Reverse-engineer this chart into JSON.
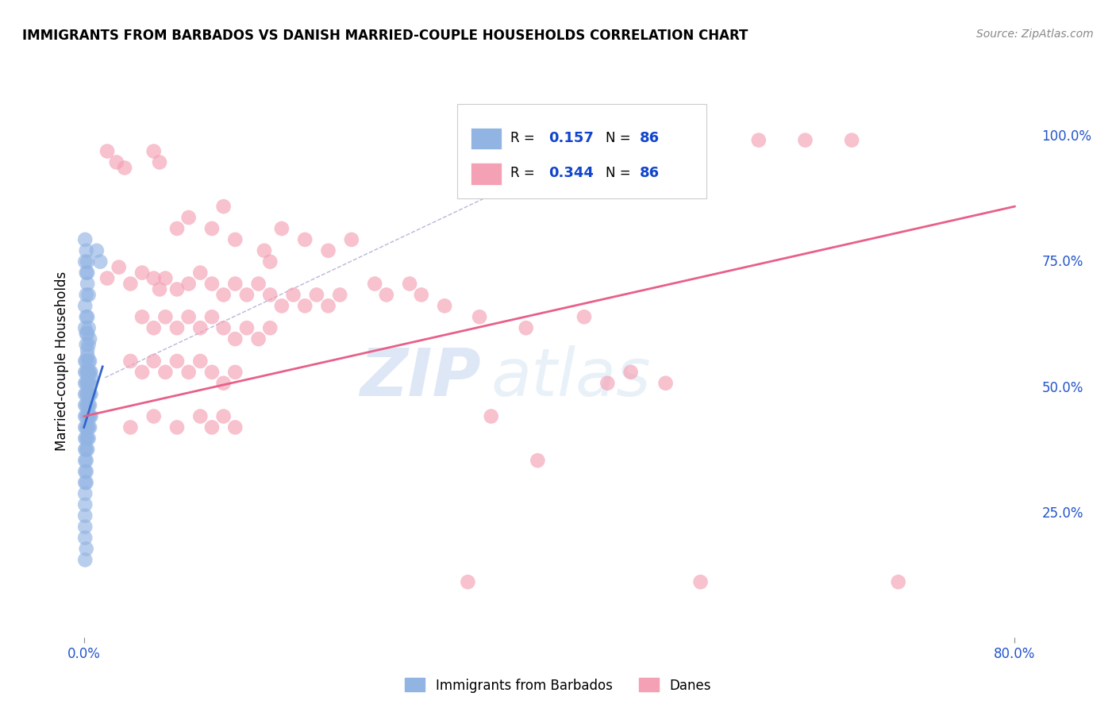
{
  "title": "IMMIGRANTS FROM BARBADOS VS DANISH MARRIED-COUPLE HOUSEHOLDS CORRELATION CHART",
  "source": "Source: ZipAtlas.com",
  "ylabel": "Married-couple Households",
  "right_yticks": [
    0.0,
    0.25,
    0.5,
    0.75,
    1.0
  ],
  "right_yticklabels": [
    "",
    "25.0%",
    "50.0%",
    "75.0%",
    "100.0%"
  ],
  "xlim": [
    -0.005,
    0.82
  ],
  "ylim": [
    0.1,
    1.1
  ],
  "R_blue": 0.157,
  "R_pink": 0.344,
  "N": 86,
  "blue_color": "#92b4e3",
  "pink_color": "#f4a0b5",
  "blue_line_color": "#3366cc",
  "pink_line_color": "#e8608a",
  "legend_blue_label": "Immigrants from Barbados",
  "legend_pink_label": "Danes",
  "watermark_zip": "ZIP",
  "watermark_atlas": "atlas",
  "blue_scatter": [
    [
      0.001,
      0.82
    ],
    [
      0.002,
      0.8
    ],
    [
      0.001,
      0.78
    ],
    [
      0.002,
      0.76
    ],
    [
      0.003,
      0.78
    ],
    [
      0.003,
      0.76
    ],
    [
      0.002,
      0.72
    ],
    [
      0.003,
      0.74
    ],
    [
      0.004,
      0.72
    ],
    [
      0.001,
      0.7
    ],
    [
      0.002,
      0.68
    ],
    [
      0.003,
      0.68
    ],
    [
      0.001,
      0.66
    ],
    [
      0.002,
      0.65
    ],
    [
      0.003,
      0.65
    ],
    [
      0.004,
      0.66
    ],
    [
      0.002,
      0.63
    ],
    [
      0.003,
      0.62
    ],
    [
      0.004,
      0.63
    ],
    [
      0.005,
      0.64
    ],
    [
      0.001,
      0.6
    ],
    [
      0.002,
      0.6
    ],
    [
      0.003,
      0.61
    ],
    [
      0.004,
      0.6
    ],
    [
      0.005,
      0.6
    ],
    [
      0.001,
      0.58
    ],
    [
      0.002,
      0.58
    ],
    [
      0.003,
      0.58
    ],
    [
      0.004,
      0.58
    ],
    [
      0.005,
      0.58
    ],
    [
      0.006,
      0.58
    ],
    [
      0.001,
      0.56
    ],
    [
      0.002,
      0.56
    ],
    [
      0.003,
      0.56
    ],
    [
      0.004,
      0.56
    ],
    [
      0.005,
      0.56
    ],
    [
      0.006,
      0.57
    ],
    [
      0.001,
      0.54
    ],
    [
      0.002,
      0.54
    ],
    [
      0.003,
      0.54
    ],
    [
      0.004,
      0.54
    ],
    [
      0.005,
      0.54
    ],
    [
      0.006,
      0.54
    ],
    [
      0.001,
      0.52
    ],
    [
      0.002,
      0.52
    ],
    [
      0.003,
      0.52
    ],
    [
      0.004,
      0.52
    ],
    [
      0.005,
      0.52
    ],
    [
      0.001,
      0.5
    ],
    [
      0.002,
      0.5
    ],
    [
      0.003,
      0.5
    ],
    [
      0.004,
      0.5
    ],
    [
      0.005,
      0.5
    ],
    [
      0.006,
      0.5
    ],
    [
      0.001,
      0.48
    ],
    [
      0.002,
      0.48
    ],
    [
      0.003,
      0.48
    ],
    [
      0.004,
      0.48
    ],
    [
      0.005,
      0.48
    ],
    [
      0.001,
      0.46
    ],
    [
      0.002,
      0.46
    ],
    [
      0.003,
      0.46
    ],
    [
      0.004,
      0.46
    ],
    [
      0.001,
      0.44
    ],
    [
      0.002,
      0.44
    ],
    [
      0.003,
      0.44
    ],
    [
      0.001,
      0.42
    ],
    [
      0.002,
      0.42
    ],
    [
      0.001,
      0.4
    ],
    [
      0.002,
      0.4
    ],
    [
      0.001,
      0.38
    ],
    [
      0.002,
      0.38
    ],
    [
      0.001,
      0.36
    ],
    [
      0.001,
      0.34
    ],
    [
      0.001,
      0.32
    ],
    [
      0.001,
      0.3
    ],
    [
      0.001,
      0.28
    ],
    [
      0.002,
      0.26
    ],
    [
      0.001,
      0.24
    ],
    [
      0.014,
      0.78
    ],
    [
      0.011,
      0.8
    ]
  ],
  "pink_scatter": [
    [
      0.02,
      0.98
    ],
    [
      0.028,
      0.96
    ],
    [
      0.035,
      0.95
    ],
    [
      0.06,
      0.98
    ],
    [
      0.065,
      0.96
    ],
    [
      0.08,
      0.84
    ],
    [
      0.09,
      0.86
    ],
    [
      0.11,
      0.84
    ],
    [
      0.12,
      0.88
    ],
    [
      0.13,
      0.82
    ],
    [
      0.155,
      0.8
    ],
    [
      0.16,
      0.78
    ],
    [
      0.17,
      0.84
    ],
    [
      0.19,
      0.82
    ],
    [
      0.21,
      0.8
    ],
    [
      0.23,
      0.82
    ],
    [
      0.58,
      1.0
    ],
    [
      0.62,
      1.0
    ],
    [
      0.66,
      1.0
    ],
    [
      0.02,
      0.75
    ],
    [
      0.03,
      0.77
    ],
    [
      0.04,
      0.74
    ],
    [
      0.05,
      0.76
    ],
    [
      0.06,
      0.75
    ],
    [
      0.065,
      0.73
    ],
    [
      0.07,
      0.75
    ],
    [
      0.08,
      0.73
    ],
    [
      0.09,
      0.74
    ],
    [
      0.1,
      0.76
    ],
    [
      0.11,
      0.74
    ],
    [
      0.12,
      0.72
    ],
    [
      0.13,
      0.74
    ],
    [
      0.14,
      0.72
    ],
    [
      0.15,
      0.74
    ],
    [
      0.16,
      0.72
    ],
    [
      0.17,
      0.7
    ],
    [
      0.18,
      0.72
    ],
    [
      0.19,
      0.7
    ],
    [
      0.2,
      0.72
    ],
    [
      0.21,
      0.7
    ],
    [
      0.22,
      0.72
    ],
    [
      0.25,
      0.74
    ],
    [
      0.26,
      0.72
    ],
    [
      0.28,
      0.74
    ],
    [
      0.29,
      0.72
    ],
    [
      0.05,
      0.68
    ],
    [
      0.06,
      0.66
    ],
    [
      0.07,
      0.68
    ],
    [
      0.08,
      0.66
    ],
    [
      0.09,
      0.68
    ],
    [
      0.1,
      0.66
    ],
    [
      0.11,
      0.68
    ],
    [
      0.12,
      0.66
    ],
    [
      0.13,
      0.64
    ],
    [
      0.14,
      0.66
    ],
    [
      0.15,
      0.64
    ],
    [
      0.16,
      0.66
    ],
    [
      0.31,
      0.7
    ],
    [
      0.34,
      0.68
    ],
    [
      0.38,
      0.66
    ],
    [
      0.43,
      0.68
    ],
    [
      0.04,
      0.6
    ],
    [
      0.05,
      0.58
    ],
    [
      0.06,
      0.6
    ],
    [
      0.07,
      0.58
    ],
    [
      0.08,
      0.6
    ],
    [
      0.09,
      0.58
    ],
    [
      0.1,
      0.6
    ],
    [
      0.11,
      0.58
    ],
    [
      0.12,
      0.56
    ],
    [
      0.13,
      0.58
    ],
    [
      0.45,
      0.56
    ],
    [
      0.47,
      0.58
    ],
    [
      0.5,
      0.56
    ],
    [
      0.04,
      0.48
    ],
    [
      0.06,
      0.5
    ],
    [
      0.08,
      0.48
    ],
    [
      0.1,
      0.5
    ],
    [
      0.11,
      0.48
    ],
    [
      0.12,
      0.5
    ],
    [
      0.13,
      0.48
    ],
    [
      0.35,
      0.5
    ],
    [
      0.39,
      0.42
    ],
    [
      0.33,
      0.2
    ],
    [
      0.53,
      0.2
    ],
    [
      0.7,
      0.2
    ]
  ],
  "blue_line_x": [
    0.0,
    0.016
  ],
  "blue_line_y": [
    0.48,
    0.59
  ],
  "pink_line_x": [
    0.0,
    0.8
  ],
  "pink_line_y": [
    0.5,
    0.88
  ],
  "diag_line_x": [
    0.018,
    0.5
  ],
  "diag_line_y": [
    0.57,
    1.05
  ]
}
